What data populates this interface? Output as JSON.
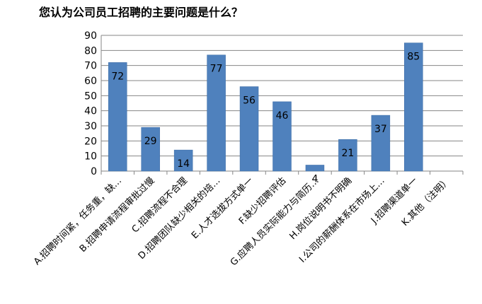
{
  "chart_data": {
    "type": "bar",
    "title": "您认为公司员工招聘的主要问题是什么？",
    "categories": [
      "A.招聘时间紧，任务重，缺…",
      "B.招聘申请流程审批过慢",
      "C.招聘流程不合理",
      "D.招聘团队缺少相关的培…",
      "E.人才选拔方式单一",
      "F.缺少招聘评估",
      "G.应聘人员实际能力与简历…",
      "H.岗位说明书不明确",
      "I.公司的薪酬体系在市场上…",
      "J.招聘渠道单一",
      "K.其他（注明）"
    ],
    "values": [
      72,
      29,
      14,
      77,
      56,
      46,
      4,
      21,
      37,
      85,
      null
    ],
    "data_labels": [
      "72",
      "29",
      "14",
      "77",
      "56",
      "46",
      "4",
      "21",
      "37",
      "85",
      ""
    ],
    "ylim": [
      0,
      90
    ],
    "yticks": [
      0,
      10,
      20,
      30,
      40,
      50,
      60,
      70,
      80,
      90
    ],
    "xlabel": "",
    "ylabel": "",
    "grid": true,
    "legend": "none",
    "colors": {
      "bar": "#4F81BD",
      "bar_edge": "#3A6BA5",
      "grid": "#868686",
      "axis": "#868686"
    }
  }
}
